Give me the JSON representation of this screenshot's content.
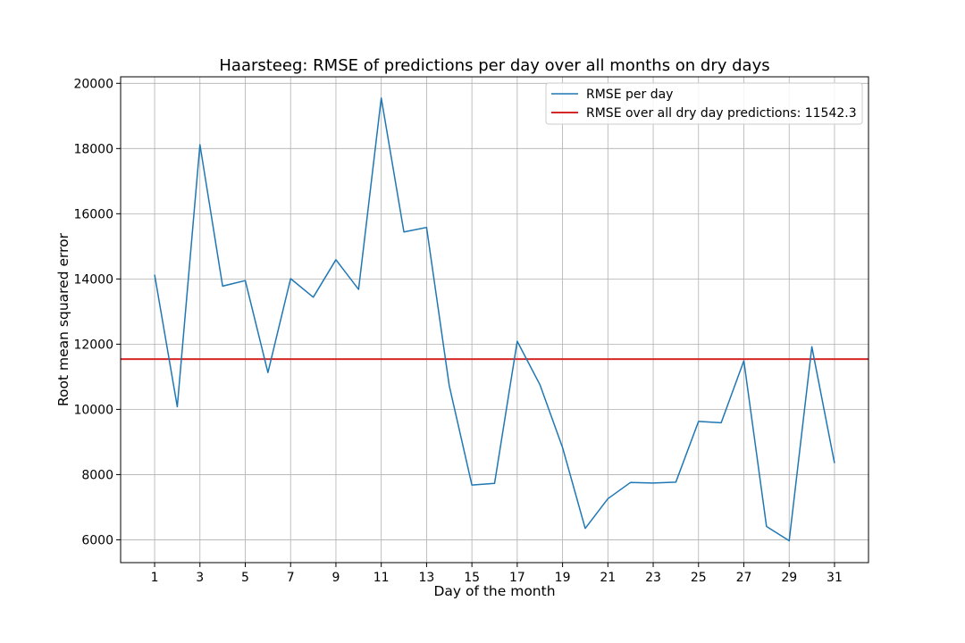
{
  "chart_data": {
    "type": "line",
    "title": "Haarsteeg: RMSE of predictions per day over all months on dry days",
    "xlabel": "Day of the month",
    "ylabel": "Root mean squared error",
    "xlim": [
      -0.5,
      32.5
    ],
    "ylim": [
      5300,
      20200
    ],
    "xticks": [
      1,
      3,
      5,
      7,
      9,
      11,
      13,
      15,
      17,
      19,
      21,
      23,
      25,
      27,
      29,
      31
    ],
    "yticks": [
      6000,
      8000,
      10000,
      12000,
      14000,
      16000,
      18000,
      20000
    ],
    "grid": true,
    "legend_position": "upper right",
    "series": [
      {
        "name": "RMSE per day",
        "color": "#1f77b4",
        "x": [
          1,
          2,
          3,
          4,
          5,
          6,
          7,
          8,
          9,
          10,
          11,
          12,
          13,
          14,
          15,
          16,
          17,
          18,
          19,
          20,
          21,
          22,
          23,
          24,
          25,
          26,
          27,
          28,
          29,
          30,
          31
        ],
        "values": [
          14130,
          10080,
          18120,
          13780,
          13950,
          11130,
          14010,
          13440,
          14590,
          13680,
          19550,
          15440,
          15580,
          10730,
          7680,
          7730,
          12090,
          10760,
          8830,
          6350,
          7260,
          7760,
          7740,
          7770,
          9630,
          9590,
          11490,
          6410,
          5970,
          11920,
          8350
        ]
      }
    ],
    "reference_lines": [
      {
        "name": "RMSE over all dry day predictions: 11542.3",
        "color": "#d62728",
        "y": 11542.3
      }
    ]
  }
}
